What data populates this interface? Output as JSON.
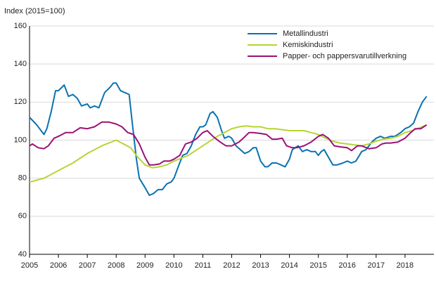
{
  "chart_data": {
    "type": "line",
    "y_axis_label": "Index (2015=100)",
    "xlim": [
      2005,
      2019
    ],
    "xticks": [
      2005,
      2006,
      2007,
      2008,
      2009,
      2010,
      2011,
      2012,
      2013,
      2014,
      2015,
      2016,
      2017,
      2018
    ],
    "ylim": [
      40,
      160
    ],
    "yticks": [
      40,
      60,
      80,
      100,
      120,
      140,
      160
    ],
    "grid": true,
    "legend": "top-right",
    "series": [
      {
        "name": "Metallindustri",
        "color": "#0a72b0",
        "x": [
          2005.0,
          2005.25,
          2005.5,
          2005.6,
          2005.75,
          2005.9,
          2006.0,
          2006.2,
          2006.35,
          2006.5,
          2006.65,
          2006.8,
          2007.0,
          2007.1,
          2007.25,
          2007.4,
          2007.6,
          2007.8,
          2007.9,
          2008.0,
          2008.15,
          2008.3,
          2008.45,
          2008.55,
          2008.7,
          2008.8,
          2009.0,
          2009.15,
          2009.3,
          2009.45,
          2009.6,
          2009.75,
          2009.9,
          2010.0,
          2010.15,
          2010.3,
          2010.45,
          2010.6,
          2010.75,
          2010.9,
          2011.0,
          2011.1,
          2011.25,
          2011.35,
          2011.5,
          2011.65,
          2011.75,
          2011.9,
          2012.0,
          2012.15,
          2012.3,
          2012.45,
          2012.6,
          2012.75,
          2012.85,
          2013.0,
          2013.15,
          2013.25,
          2013.4,
          2013.55,
          2013.7,
          2013.85,
          2014.0,
          2014.1,
          2014.3,
          2014.45,
          2014.6,
          2014.75,
          2014.9,
          2015.0,
          2015.1,
          2015.2,
          2015.35,
          2015.5,
          2015.65,
          2015.85,
          2016.0,
          2016.15,
          2016.3,
          2016.5,
          2016.65,
          2016.85,
          2017.0,
          2017.15,
          2017.3,
          2017.5,
          2017.65,
          2017.85,
          2018.0,
          2018.15,
          2018.3,
          2018.45,
          2018.6,
          2018.75
        ],
        "values": [
          112,
          108,
          103,
          106,
          115,
          126,
          126,
          129,
          123,
          124,
          122,
          118,
          119,
          117,
          118,
          117,
          125,
          128,
          130,
          130,
          126,
          125,
          124,
          110,
          90,
          80,
          75,
          71,
          72,
          74,
          74,
          77,
          78,
          80,
          86,
          92,
          93,
          97,
          103,
          107,
          107,
          108,
          114,
          115,
          112,
          105,
          101,
          102,
          101,
          97,
          95,
          93,
          94,
          96,
          96,
          89,
          86,
          86,
          88,
          88,
          87,
          86,
          90,
          95,
          97,
          94,
          95,
          94,
          94,
          92,
          94,
          95,
          91,
          87,
          87,
          88,
          89,
          88,
          89,
          94,
          95,
          99,
          101,
          102,
          101,
          102,
          102,
          104,
          106,
          107,
          109,
          115,
          120,
          123
        ]
      },
      {
        "name": "Kemiskindustri",
        "color": "#b8d433",
        "x": [
          2005.0,
          2005.5,
          2006.0,
          2006.5,
          2007.0,
          2007.5,
          2008.0,
          2008.25,
          2008.5,
          2008.75,
          2009.0,
          2009.25,
          2009.5,
          2009.75,
          2010.0,
          2010.5,
          2011.0,
          2011.5,
          2011.75,
          2012.0,
          2012.25,
          2012.5,
          2012.75,
          2013.0,
          2013.25,
          2013.5,
          2013.75,
          2014.0,
          2014.25,
          2014.5,
          2014.75,
          2015.0,
          2015.25,
          2015.5,
          2015.75,
          2016.0,
          2016.25,
          2016.5,
          2016.75,
          2017.0,
          2017.25,
          2017.5,
          2017.75,
          2018.0,
          2018.25,
          2018.5,
          2018.75
        ],
        "values": [
          78,
          80,
          84,
          88,
          93,
          97,
          100,
          98,
          96,
          91,
          87,
          85.5,
          86,
          87,
          89,
          92,
          97,
          102,
          104,
          106,
          107,
          107.5,
          107,
          107,
          106,
          106,
          105.5,
          105,
          105,
          105,
          104,
          103,
          101,
          99.5,
          98.5,
          98,
          97.5,
          97,
          98,
          99.5,
          100.5,
          101,
          102,
          104,
          105,
          106.5,
          108
        ]
      },
      {
        "name": "Papper- och pappersvarutillverkning",
        "color": "#9c1077",
        "x": [
          2005.0,
          2005.1,
          2005.3,
          2005.5,
          2005.65,
          2005.85,
          2006.0,
          2006.25,
          2006.5,
          2006.75,
          2007.0,
          2007.25,
          2007.5,
          2007.75,
          2008.0,
          2008.2,
          2008.4,
          2008.6,
          2008.8,
          2009.0,
          2009.15,
          2009.3,
          2009.5,
          2009.65,
          2009.85,
          2010.0,
          2010.2,
          2010.4,
          2010.6,
          2010.8,
          2011.0,
          2011.15,
          2011.35,
          2011.6,
          2011.8,
          2012.0,
          2012.25,
          2012.4,
          2012.6,
          2012.75,
          2013.0,
          2013.2,
          2013.4,
          2013.55,
          2013.75,
          2013.9,
          2014.1,
          2014.25,
          2014.5,
          2014.75,
          2015.0,
          2015.15,
          2015.35,
          2015.55,
          2015.75,
          2016.0,
          2016.15,
          2016.35,
          2016.5,
          2016.75,
          2017.0,
          2017.2,
          2017.35,
          2017.5,
          2017.75,
          2018.0,
          2018.2,
          2018.35,
          2018.55,
          2018.75
        ],
        "values": [
          97,
          98,
          96,
          95.5,
          97,
          101,
          102,
          104,
          104,
          106.5,
          106,
          107,
          109.5,
          109.5,
          108.5,
          107,
          104,
          103,
          98,
          91,
          87,
          87,
          87.5,
          89,
          89,
          90,
          92,
          98,
          99,
          101,
          104,
          105,
          102,
          99,
          97,
          97,
          99,
          101,
          104,
          104,
          103.5,
          103,
          100.5,
          100.5,
          101,
          97,
          96,
          96,
          97,
          99,
          102,
          103,
          101,
          97,
          96.5,
          96,
          94.5,
          97,
          97,
          95.5,
          96,
          98,
          98.5,
          98.5,
          99,
          101,
          104,
          106,
          106,
          108
        ]
      }
    ]
  }
}
